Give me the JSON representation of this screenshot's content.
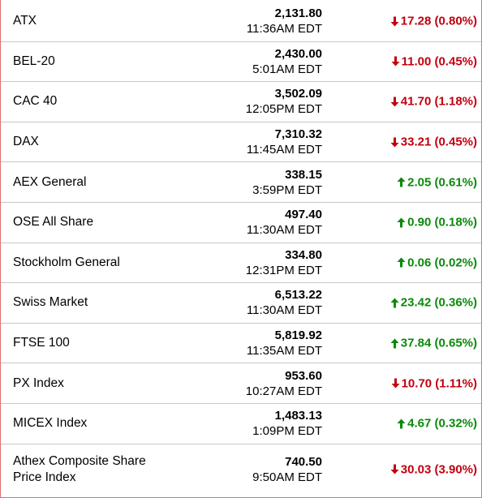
{
  "colors": {
    "down": "#c0000e",
    "up": "#0a8a0a",
    "divider": "#c8c8c8",
    "frame": "#e07070"
  },
  "indices": [
    {
      "name": "ATX",
      "price": "2,131.80",
      "time": "11:36AM EDT",
      "direction": "down",
      "change": "17.28 (0.80%)"
    },
    {
      "name": "BEL-20",
      "price": "2,430.00",
      "time": "5:01AM EDT",
      "direction": "down",
      "change": "11.00 (0.45%)"
    },
    {
      "name": "CAC 40",
      "price": "3,502.09",
      "time": "12:05PM EDT",
      "direction": "down",
      "change": "41.70 (1.18%)"
    },
    {
      "name": "DAX",
      "price": "7,310.32",
      "time": "11:45AM EDT",
      "direction": "down",
      "change": "33.21 (0.45%)"
    },
    {
      "name": "AEX General",
      "price": "338.15",
      "time": "3:59PM EDT",
      "direction": "up",
      "change": "2.05 (0.61%)"
    },
    {
      "name": "OSE All Share",
      "price": "497.40",
      "time": "11:30AM EDT",
      "direction": "up",
      "change": "0.90 (0.18%)"
    },
    {
      "name": "Stockholm General",
      "price": "334.80",
      "time": "12:31PM EDT",
      "direction": "up",
      "change": "0.06 (0.02%)"
    },
    {
      "name": "Swiss Market",
      "price": "6,513.22",
      "time": "11:30AM EDT",
      "direction": "up",
      "change": "23.42 (0.36%)"
    },
    {
      "name": "FTSE 100",
      "price": "5,819.92",
      "time": "11:35AM EDT",
      "direction": "up",
      "change": "37.84 (0.65%)"
    },
    {
      "name": "PX Index",
      "price": "953.60",
      "time": "10:27AM EDT",
      "direction": "down",
      "change": "10.70 (1.11%)"
    },
    {
      "name": "MICEX Index",
      "price": "1,483.13",
      "time": "1:09PM EDT",
      "direction": "up",
      "change": "4.67 (0.32%)"
    },
    {
      "name": "Athex Composite Share Price Index",
      "price": "740.50",
      "time": "9:50AM EDT",
      "direction": "down",
      "change": "30.03 (3.90%)"
    }
  ]
}
